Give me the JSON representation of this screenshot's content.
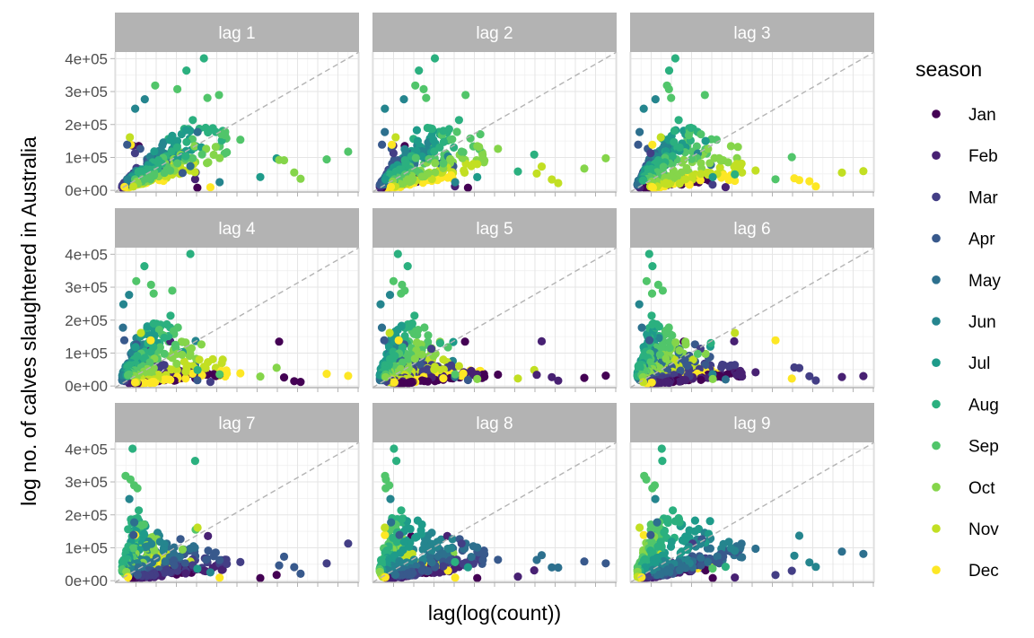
{
  "chart_data": {
    "type": "scatter",
    "facet_by": "lag",
    "panels": [
      "lag 1",
      "lag 2",
      "lag 3",
      "lag 4",
      "lag 5",
      "lag 6",
      "lag 7",
      "lag 8",
      "lag 9"
    ],
    "ylabel": "log no. of calves slaughtered in Australia",
    "xlabel": "lag(log(count))",
    "ylim": [
      -5000,
      420000
    ],
    "y_ticks": [
      0,
      100000,
      200000,
      300000,
      400000
    ],
    "y_tick_labels": [
      "0e+00",
      "1e+05",
      "2e+05",
      "3e+05",
      "4e+05"
    ],
    "x_tick_labels_shown": false,
    "grid": true,
    "reference_line": "y = x (dashed)",
    "legend": {
      "title": "season",
      "position": "right",
      "entries": [
        "Jan",
        "Feb",
        "Mar",
        "Apr",
        "May",
        "Jun",
        "Jul",
        "Aug",
        "Sep",
        "Oct",
        "Nov",
        "Dec"
      ],
      "colors": [
        "#440154",
        "#482173",
        "#433E85",
        "#38598C",
        "#2D708E",
        "#25858E",
        "#1E9B8A",
        "#2BB07F",
        "#51C56A",
        "#85D54A",
        "#C2DF23",
        "#FDE725"
      ]
    },
    "monthly_approx_levels": [
      {
        "month": "Jan",
        "typical": 25000,
        "max": 140000
      },
      {
        "month": "Feb",
        "typical": 30000,
        "max": 145000
      },
      {
        "month": "Mar",
        "typical": 45000,
        "max": 150000
      },
      {
        "month": "Apr",
        "typical": 55000,
        "max": 160000
      },
      {
        "month": "May",
        "typical": 70000,
        "max": 200000
      },
      {
        "month": "Jun",
        "typical": 90000,
        "max": 300000
      },
      {
        "month": "Jul",
        "typical": 110000,
        "max": 360000
      },
      {
        "month": "Aug",
        "typical": 130000,
        "max": 415000
      },
      {
        "month": "Sep",
        "typical": 110000,
        "max": 320000
      },
      {
        "month": "Oct",
        "typical": 80000,
        "max": 240000
      },
      {
        "month": "Nov",
        "typical": 50000,
        "max": 200000
      },
      {
        "month": "Dec",
        "typical": 30000,
        "max": 140000
      }
    ]
  }
}
